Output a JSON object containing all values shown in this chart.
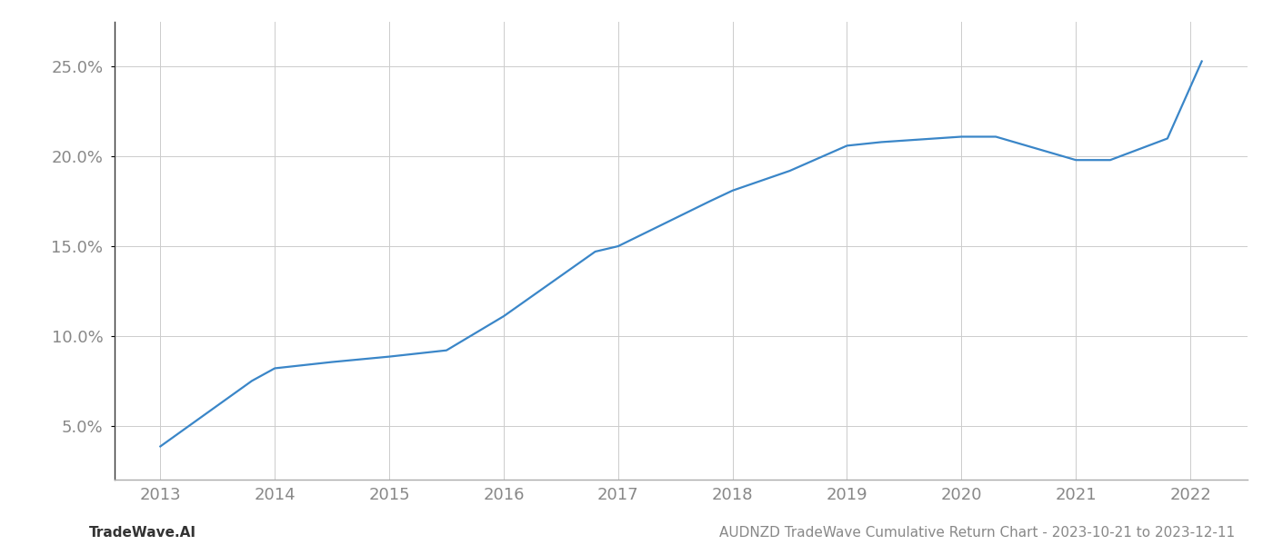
{
  "x_years": [
    2013.0,
    2013.8,
    2014.0,
    2014.5,
    2015.0,
    2015.5,
    2016.0,
    2016.8,
    2017.0,
    2017.8,
    2018.0,
    2018.5,
    2019.0,
    2019.3,
    2020.0,
    2020.3,
    2021.0,
    2021.3,
    2021.8,
    2022.1
  ],
  "y_values": [
    3.85,
    7.5,
    8.2,
    8.55,
    8.85,
    9.2,
    11.1,
    14.7,
    15.0,
    17.5,
    18.1,
    19.2,
    20.6,
    20.8,
    21.1,
    21.1,
    19.8,
    19.8,
    21.0,
    25.3
  ],
  "line_color": "#3a86c8",
  "line_width": 1.6,
  "xlim": [
    2012.6,
    2022.5
  ],
  "ylim": [
    2.0,
    27.5
  ],
  "yticks": [
    5.0,
    10.0,
    15.0,
    20.0,
    25.0
  ],
  "xticks": [
    2013,
    2014,
    2015,
    2016,
    2017,
    2018,
    2019,
    2020,
    2021,
    2022
  ],
  "grid_color": "#cccccc",
  "grid_linewidth": 0.7,
  "background_color": "#ffffff",
  "footer_left": "TradeWave.AI",
  "footer_right": "AUDNZD TradeWave Cumulative Return Chart - 2023-10-21 to 2023-12-11",
  "footer_color": "#888888",
  "footer_fontsize": 11,
  "tick_label_color": "#888888",
  "tick_fontsize": 13,
  "left_spine_color": "#333333"
}
